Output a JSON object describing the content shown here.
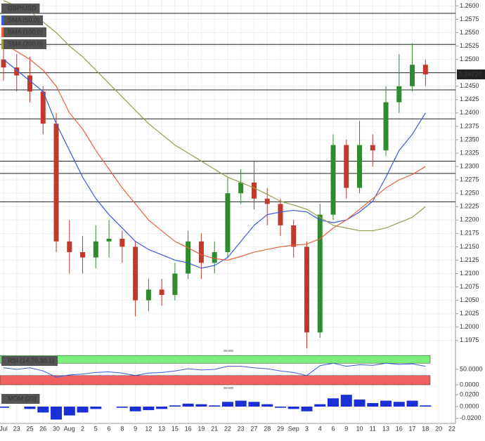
{
  "chart_data": [
    {
      "type": "candlestick",
      "title": "GBP/USD",
      "categories": [
        "Jul",
        "23",
        "25",
        "26",
        "30",
        "Aug",
        "2",
        "5",
        "6",
        "8",
        "9",
        "12",
        "13",
        "15",
        "16",
        "19",
        "21",
        "22",
        "23",
        "27",
        "28",
        "29",
        "Sep",
        "3",
        "4",
        "6",
        "9",
        "10",
        "11",
        "13",
        "16",
        "17",
        "18",
        "20",
        "22"
      ],
      "open": [
        1.25,
        1.2485,
        1.247,
        1.244,
        1.238,
        1.216,
        1.214,
        1.213,
        1.216,
        1.2165,
        1.215,
        1.205,
        1.207,
        1.206,
        1.21,
        1.216,
        1.212,
        1.214,
        1.225,
        1.227,
        1.224,
        1.223,
        1.219,
        1.215,
        1.199,
        1.221,
        1.234,
        1.226,
        1.234,
        1.233,
        1.242,
        1.245,
        1.249,
        null,
        null
      ],
      "high": [
        1.252,
        1.251,
        1.2505,
        1.245,
        1.24,
        1.22,
        1.217,
        1.219,
        1.22,
        1.218,
        1.216,
        1.209,
        1.209,
        1.212,
        1.218,
        1.2175,
        1.216,
        1.228,
        1.2295,
        1.231,
        1.226,
        1.224,
        1.22,
        1.216,
        1.223,
        1.236,
        1.235,
        1.2385,
        1.236,
        1.245,
        1.251,
        1.253,
        1.25,
        null,
        null
      ],
      "low": [
        1.246,
        1.244,
        1.242,
        1.236,
        1.214,
        1.21,
        1.21,
        1.211,
        1.213,
        1.212,
        1.202,
        1.203,
        1.204,
        1.205,
        1.209,
        1.209,
        1.21,
        1.213,
        1.223,
        1.222,
        1.219,
        1.217,
        1.213,
        1.196,
        1.198,
        1.22,
        1.224,
        1.225,
        1.23,
        1.232,
        1.24,
        1.244,
        1.245,
        null,
        null
      ],
      "close": [
        1.2485,
        1.247,
        1.244,
        1.238,
        1.216,
        1.214,
        1.213,
        1.216,
        1.2165,
        1.215,
        1.205,
        1.207,
        1.206,
        1.21,
        1.216,
        1.212,
        1.214,
        1.225,
        1.227,
        1.224,
        1.223,
        1.219,
        1.215,
        1.199,
        1.221,
        1.234,
        1.226,
        1.234,
        1.233,
        1.242,
        1.245,
        1.249,
        1.2472,
        null,
        null
      ],
      "up_color": "#2e8b2e",
      "down_color": "#c0392b",
      "series": [
        {
          "name": "SMA (50,0)",
          "color": "#3b5bdb",
          "values": [
            1.25,
            1.248,
            1.246,
            1.244,
            1.238,
            1.233,
            1.228,
            1.224,
            1.221,
            1.2185,
            1.216,
            1.2145,
            1.2135,
            1.2125,
            1.212,
            1.211,
            1.2115,
            1.213,
            1.216,
            1.219,
            1.221,
            1.2215,
            1.2218,
            1.2215,
            1.22,
            1.2195,
            1.22,
            1.2215,
            1.2235,
            1.228,
            1.233,
            1.236,
            1.24,
            null,
            null
          ]
        },
        {
          "name": "SMA (100,0)",
          "color": "#e8603c",
          "values": [
            1.253,
            1.2515,
            1.25,
            1.248,
            1.245,
            1.24,
            1.237,
            1.233,
            1.2295,
            1.226,
            1.223,
            1.22,
            1.218,
            1.216,
            1.2148,
            1.2135,
            1.2128,
            1.2125,
            1.2132,
            1.214,
            1.2145,
            1.215,
            1.2153,
            1.2155,
            1.2165,
            1.2185,
            1.22,
            1.222,
            1.224,
            1.226,
            1.2275,
            1.2285,
            1.23,
            null,
            null
          ]
        },
        {
          "name": "SMA (200,0)",
          "color": "#9a9a50",
          "values": [
            1.261,
            1.26,
            1.259,
            1.257,
            1.255,
            1.2525,
            1.2505,
            1.248,
            1.2455,
            1.243,
            1.2405,
            1.238,
            1.236,
            1.234,
            1.2325,
            1.231,
            1.2295,
            1.228,
            1.227,
            1.226,
            1.2248,
            1.2235,
            1.2228,
            1.222,
            1.2205,
            1.219,
            1.2185,
            1.218,
            1.218,
            1.2185,
            1.2195,
            1.2205,
            1.2225,
            null,
            null
          ]
        }
      ],
      "levels": [
        1.2586,
        1.2528,
        1.2475,
        1.2443,
        1.2389,
        1.231,
        1.2287,
        1.2234
      ],
      "last_price": {
        "value": 1.2472,
        "label": "1.24720"
      },
      "ylim": [
        1.1959,
        1.2611
      ],
      "yticks": [
        {
          "value": 1.26,
          "label": "1.2600"
        },
        {
          "value": 1.2575,
          "label": "1.2575"
        },
        {
          "value": 1.255,
          "label": "1.2550"
        },
        {
          "value": 1.2525,
          "label": "1.2525"
        },
        {
          "value": 1.25,
          "label": "1.2500"
        },
        {
          "value": 1.2475,
          "label": "1.2475"
        },
        {
          "value": 1.245,
          "label": "1.2450"
        },
        {
          "value": 1.2425,
          "label": "1.2425"
        },
        {
          "value": 1.24,
          "label": "1.2400"
        },
        {
          "value": 1.2375,
          "label": "1.2375"
        },
        {
          "value": 1.235,
          "label": "1.2350"
        },
        {
          "value": 1.2325,
          "label": "1.2325"
        },
        {
          "value": 1.23,
          "label": "1.2300"
        },
        {
          "value": 1.2275,
          "label": "1.2275"
        },
        {
          "value": 1.225,
          "label": "1.2250"
        },
        {
          "value": 1.2225,
          "label": "1.2225"
        },
        {
          "value": 1.22,
          "label": "1.2200"
        },
        {
          "value": 1.2175,
          "label": "1.2175"
        },
        {
          "value": 1.215,
          "label": "1.2150"
        },
        {
          "value": 1.2125,
          "label": "1.2125"
        },
        {
          "value": 1.21,
          "label": "1.2100"
        },
        {
          "value": 1.2075,
          "label": "1.2075"
        },
        {
          "value": 1.205,
          "label": "1.2050"
        },
        {
          "value": 1.2025,
          "label": "1.2025"
        },
        {
          "value": 1.2,
          "label": "1.2000"
        },
        {
          "value": 1.1975,
          "label": "1.1975"
        }
      ],
      "grid": true
    },
    {
      "type": "line",
      "title": "RSI (14,70,30,1)",
      "color": "#3b5bdb",
      "values": [
        55,
        50,
        55,
        45,
        25,
        32,
        35,
        40,
        42,
        38,
        30,
        38,
        40,
        45,
        52,
        48,
        50,
        60,
        60,
        55,
        52,
        45,
        40,
        30,
        62,
        70,
        60,
        65,
        63,
        70,
        66,
        68,
        60,
        null,
        null
      ],
      "bands": [
        {
          "from": 70,
          "to": 95,
          "color": "#7cf07c"
        },
        {
          "from": 0,
          "to": 30,
          "color": "#f06060"
        }
      ],
      "ylim": [
        0,
        100
      ],
      "yticks": [
        {
          "value": 50,
          "label": "50.0000"
        },
        {
          "value": 0,
          "label": "0.0000"
        }
      ]
    },
    {
      "type": "bar",
      "title": "MOM (20)",
      "color": "#1a2fd6",
      "values": [
        -0.002,
        0,
        -0.004,
        -0.01,
        -0.022,
        -0.015,
        -0.01,
        -0.004,
        0,
        -0.002,
        -0.008,
        -0.006,
        -0.004,
        0.002,
        0.005,
        0.004,
        0.002,
        0.008,
        0.01,
        0.008,
        0.004,
        -0.002,
        -0.004,
        -0.008,
        0.004,
        0.014,
        0.02,
        0.012,
        0.006,
        0.01,
        0.008,
        0.01,
        0.002,
        null,
        null
      ],
      "ylim": [
        -0.025,
        0.025
      ],
      "yticks": [
        {
          "value": 0.02,
          "label": "0.0200"
        },
        {
          "value": 0,
          "label": "0.0000"
        },
        {
          "value": -0.02,
          "label": "-0.0200"
        }
      ]
    }
  ]
}
